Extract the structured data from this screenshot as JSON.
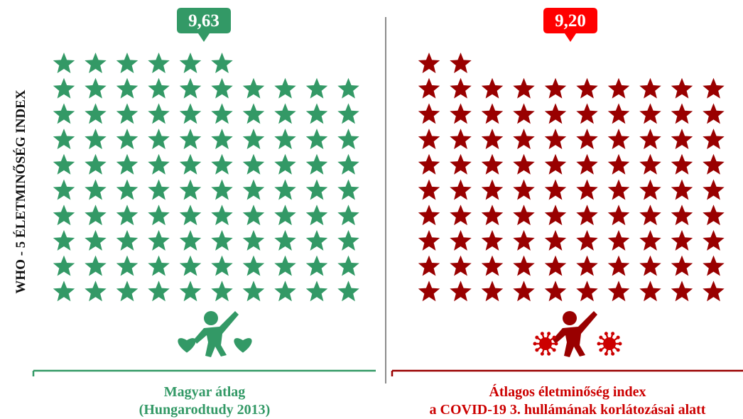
{
  "y_axis_label": "WHO - 5 ÉLETMINŐSÉG INDEX",
  "chart_data": [
    {
      "type": "pictograph",
      "value": 9.63,
      "value_label": "9,63",
      "max_value": 10,
      "stars_per_row": 10,
      "full_rows": 9,
      "partial_row_stars": 6,
      "color": "#339966",
      "caption": [
        "Magyar átlag",
        "(Hungarodtudy 2013)"
      ],
      "icon": "happy-person-with-hearts-icon"
    },
    {
      "type": "pictograph",
      "value": 9.2,
      "value_label": "9,20",
      "max_value": 10,
      "stars_per_row": 10,
      "full_rows": 9,
      "partial_row_stars": 2,
      "color": "#990000",
      "badge_color": "#ff0000",
      "caption": [
        "Átlagos életminőség index",
        "a COVID-19 3. hullámának korlátozásai alatt"
      ],
      "icon": "person-with-virus-icon"
    }
  ]
}
